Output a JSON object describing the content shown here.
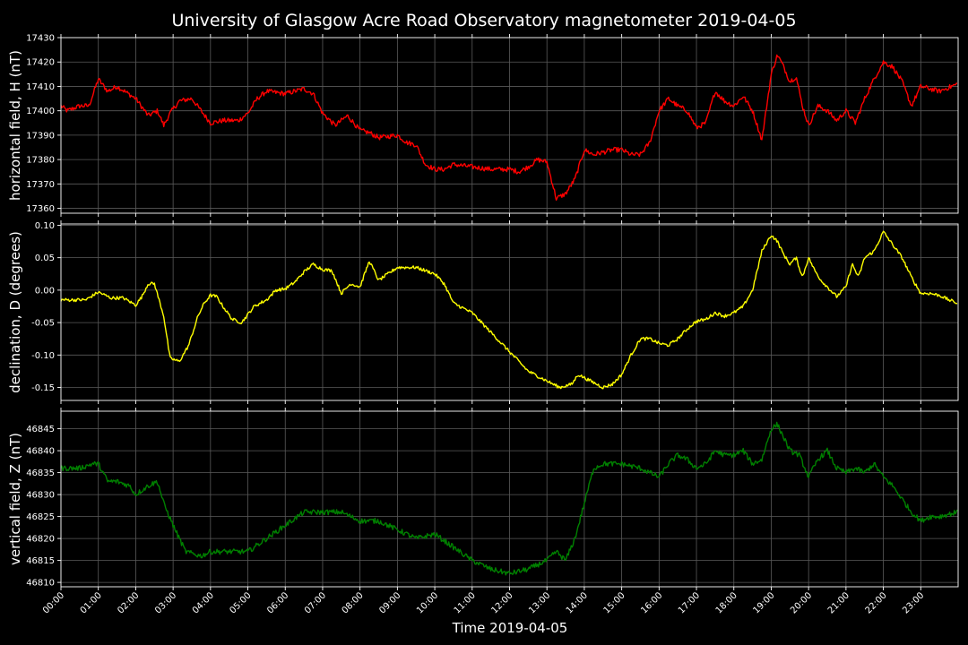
{
  "chart_data": {
    "type": "line",
    "title": "University of Glasgow Acre Road Observatory magnetometer 2019-04-05",
    "xlabel": "Time 2019-04-05",
    "x_ticks": [
      "00:00",
      "01:00",
      "02:00",
      "03:00",
      "04:00",
      "05:00",
      "06:00",
      "07:00",
      "08:00",
      "09:00",
      "10:00",
      "11:00",
      "12:00",
      "13:00",
      "14:00",
      "15:00",
      "16:00",
      "17:00",
      "18:00",
      "19:00",
      "20:00",
      "21:00",
      "22:00",
      "23:00"
    ],
    "xlim": [
      "00:00",
      "24:00"
    ],
    "grid": true,
    "panels": [
      {
        "ylabel": "horizontal field, H (nT)",
        "color": "#ff0000",
        "ylim": [
          17358,
          17430
        ],
        "y_ticks": [
          17360,
          17370,
          17380,
          17390,
          17400,
          17410,
          17420,
          17430
        ],
        "tick_decimals": 0,
        "noise": 1.0,
        "series": {
          "x": [
            "00:00",
            "00:10",
            "00:30",
            "00:45",
            "01:00",
            "01:15",
            "01:30",
            "02:00",
            "02:20",
            "02:35",
            "02:45",
            "02:55",
            "03:10",
            "03:30",
            "03:45",
            "04:00",
            "04:20",
            "04:45",
            "05:00",
            "05:15",
            "05:30",
            "06:00",
            "06:30",
            "06:45",
            "07:00",
            "07:20",
            "07:40",
            "08:00",
            "08:15",
            "08:30",
            "09:00",
            "09:15",
            "09:30",
            "09:45",
            "10:00",
            "10:15",
            "10:30",
            "11:00",
            "11:30",
            "12:00",
            "12:15",
            "12:30",
            "12:45",
            "13:00",
            "13:15",
            "13:30",
            "13:45",
            "14:00",
            "14:15",
            "14:30",
            "14:45",
            "15:00",
            "15:15",
            "15:30",
            "15:45",
            "16:00",
            "16:15",
            "16:30",
            "16:45",
            "17:00",
            "17:15",
            "17:30",
            "17:45",
            "18:00",
            "18:15",
            "18:30",
            "18:45",
            "19:00",
            "19:10",
            "19:20",
            "19:30",
            "19:40",
            "19:50",
            "20:00",
            "20:15",
            "20:30",
            "20:45",
            "21:00",
            "21:15",
            "21:30",
            "21:45",
            "22:00",
            "22:15",
            "22:30",
            "22:45",
            "23:00",
            "23:15",
            "23:30",
            "23:59"
          ],
          "y": [
            17402,
            17400,
            17402,
            17402,
            17413,
            17408,
            17410,
            17405,
            17398,
            17400,
            17394,
            17399,
            17404,
            17405,
            17400,
            17395,
            17396,
            17396,
            17399,
            17405,
            17408,
            17407,
            17409,
            17407,
            17399,
            17394,
            17398,
            17392,
            17391,
            17389,
            17390,
            17387,
            17386,
            17378,
            17376,
            17376,
            17378,
            17377,
            17376,
            17376,
            17375,
            17377,
            17380,
            17379,
            17364,
            17366,
            17372,
            17384,
            17382,
            17383,
            17384,
            17384,
            17382,
            17382,
            17387,
            17400,
            17405,
            17402,
            17400,
            17393,
            17395,
            17408,
            17404,
            17402,
            17406,
            17400,
            17388,
            17415,
            17423,
            17418,
            17412,
            17414,
            17402,
            17394,
            17402,
            17400,
            17396,
            17400,
            17395,
            17405,
            17413,
            17420,
            17418,
            17412,
            17402,
            17410,
            17409,
            17408,
            17411
          ]
        }
      },
      {
        "ylabel": "declination, D (degrees)",
        "color": "#ffff00",
        "ylim": [
          -0.17,
          0.102
        ],
        "y_ticks": [
          -0.15,
          -0.1,
          -0.05,
          0.0,
          0.05,
          0.1
        ],
        "tick_decimals": 2,
        "noise": 0.0025,
        "series": {
          "x": [
            "00:00",
            "00:20",
            "00:40",
            "01:00",
            "01:20",
            "01:40",
            "02:00",
            "02:10",
            "02:20",
            "02:30",
            "02:45",
            "02:55",
            "03:10",
            "03:25",
            "03:40",
            "03:50",
            "04:00",
            "04:10",
            "04:20",
            "04:35",
            "04:50",
            "05:10",
            "05:30",
            "05:45",
            "06:00",
            "06:15",
            "06:30",
            "06:45",
            "07:00",
            "07:15",
            "07:30",
            "07:45",
            "08:00",
            "08:15",
            "08:30",
            "08:45",
            "09:00",
            "09:30",
            "10:00",
            "10:15",
            "10:30",
            "11:00",
            "11:30",
            "12:00",
            "12:30",
            "13:00",
            "13:20",
            "13:40",
            "13:50",
            "14:10",
            "14:30",
            "14:45",
            "15:00",
            "15:15",
            "15:30",
            "15:45",
            "16:00",
            "16:15",
            "16:30",
            "16:45",
            "17:00",
            "17:15",
            "17:30",
            "17:45",
            "18:00",
            "18:15",
            "18:30",
            "18:45",
            "19:00",
            "19:10",
            "19:20",
            "19:30",
            "19:40",
            "19:50",
            "20:00",
            "20:10",
            "20:20",
            "20:30",
            "20:45",
            "21:00",
            "21:10",
            "21:20",
            "21:30",
            "21:45",
            "22:00",
            "22:15",
            "22:30",
            "22:45",
            "23:00",
            "23:15",
            "23:30",
            "23:45",
            "23:59"
          ],
          "y": [
            -0.015,
            -0.015,
            -0.015,
            -0.003,
            -0.012,
            -0.012,
            -0.023,
            -0.01,
            0.01,
            0.01,
            -0.04,
            -0.105,
            -0.11,
            -0.085,
            -0.04,
            -0.02,
            -0.008,
            -0.01,
            -0.025,
            -0.045,
            -0.05,
            -0.025,
            -0.015,
            0.0,
            0.002,
            0.012,
            0.028,
            0.04,
            0.032,
            0.03,
            -0.005,
            0.01,
            0.005,
            0.045,
            0.015,
            0.025,
            0.035,
            0.035,
            0.025,
            0.01,
            -0.02,
            -0.035,
            -0.065,
            -0.095,
            -0.125,
            -0.14,
            -0.15,
            -0.145,
            -0.13,
            -0.14,
            -0.15,
            -0.145,
            -0.13,
            -0.1,
            -0.075,
            -0.075,
            -0.082,
            -0.085,
            -0.075,
            -0.06,
            -0.048,
            -0.045,
            -0.035,
            -0.04,
            -0.035,
            -0.025,
            0.0,
            0.06,
            0.085,
            0.075,
            0.055,
            0.04,
            0.05,
            0.02,
            0.05,
            0.03,
            0.015,
            0.005,
            -0.01,
            0.005,
            0.04,
            0.02,
            0.05,
            0.06,
            0.09,
            0.07,
            0.05,
            0.02,
            -0.005,
            -0.005,
            -0.008,
            -0.015,
            -0.02
          ]
        }
      },
      {
        "ylabel": "vertical field, Z (nT)",
        "color": "#008000",
        "ylim": [
          46809,
          46849
        ],
        "y_ticks": [
          46810,
          46815,
          46820,
          46825,
          46830,
          46835,
          46840,
          46845
        ],
        "tick_decimals": 0,
        "noise": 0.6,
        "series": {
          "x": [
            "00:00",
            "00:30",
            "00:50",
            "01:00",
            "01:15",
            "01:30",
            "01:50",
            "02:00",
            "02:20",
            "02:35",
            "02:45",
            "03:00",
            "03:20",
            "03:45",
            "04:00",
            "04:30",
            "05:00",
            "05:30",
            "06:00",
            "06:30",
            "07:00",
            "07:30",
            "08:00",
            "08:30",
            "09:00",
            "09:30",
            "10:00",
            "10:30",
            "11:00",
            "11:30",
            "12:00",
            "12:30",
            "13:00",
            "13:15",
            "13:30",
            "13:45",
            "14:00",
            "14:15",
            "14:30",
            "15:00",
            "15:30",
            "15:45",
            "16:00",
            "16:15",
            "16:30",
            "16:45",
            "17:00",
            "17:15",
            "17:30",
            "17:45",
            "18:00",
            "18:15",
            "18:30",
            "18:45",
            "19:00",
            "19:10",
            "19:20",
            "19:30",
            "19:45",
            "20:00",
            "20:15",
            "20:30",
            "20:45",
            "21:00",
            "21:15",
            "21:30",
            "21:45",
            "22:00",
            "22:15",
            "22:30",
            "22:45",
            "23:00",
            "23:15",
            "23:30",
            "23:59"
          ],
          "y": [
            46836,
            46836,
            46837,
            46837,
            46833,
            46833,
            46832,
            46830,
            46832,
            46833,
            46828,
            46823,
            46817,
            46816,
            46817,
            46817,
            46817,
            46820,
            46823,
            46826,
            46826,
            46826,
            46824,
            46824,
            46822,
            46820,
            46821,
            46818,
            46815,
            46813,
            46812,
            46813,
            46815,
            46817,
            46815,
            46820,
            46828,
            46836,
            46837,
            46837,
            46836,
            46835,
            46834,
            46837,
            46839,
            46838,
            46836,
            46837,
            46840,
            46839,
            46839,
            46840,
            46837,
            46838,
            46845,
            46846,
            46843,
            46840,
            46839,
            46834,
            46838,
            46840,
            46836,
            46835,
            46836,
            46835,
            46837,
            46834,
            46832,
            46829,
            46826,
            46824,
            46825,
            46825,
            46826
          ]
        }
      }
    ]
  }
}
